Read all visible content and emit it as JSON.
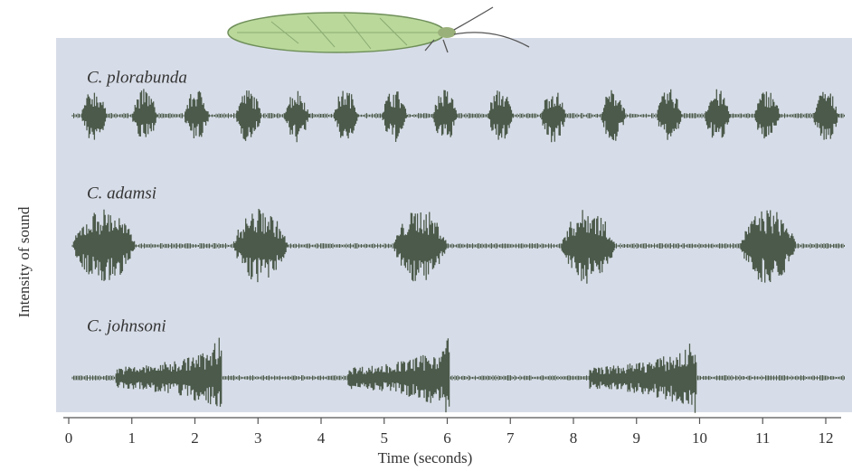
{
  "chart_data": {
    "type": "oscillogram",
    "x_label": "Time (seconds)",
    "y_label": "Intensity of sound",
    "xlim": [
      0,
      12.3
    ],
    "xticks": [
      0,
      1,
      2,
      3,
      4,
      5,
      6,
      7,
      8,
      9,
      10,
      11,
      12
    ],
    "series": [
      {
        "name": "C. plorabunda",
        "color": "#4b5a4a",
        "bursts": [
          [
            0.2,
            0.6
          ],
          [
            1.0,
            1.4
          ],
          [
            1.83,
            2.23
          ],
          [
            2.65,
            3.05
          ],
          [
            3.41,
            3.81
          ],
          [
            4.19,
            4.59
          ],
          [
            4.96,
            5.36
          ],
          [
            5.76,
            6.16
          ],
          [
            6.64,
            7.04
          ],
          [
            7.48,
            7.88
          ],
          [
            8.43,
            8.83
          ],
          [
            9.32,
            9.72
          ],
          [
            10.08,
            10.48
          ],
          [
            10.87,
            11.27
          ],
          [
            11.8,
            12.2
          ]
        ]
      },
      {
        "name": "C. adamsi",
        "color": "#4b5a4a",
        "bursts": [
          [
            0.06,
            1.06
          ],
          [
            2.6,
            3.47
          ],
          [
            5.15,
            6.0
          ],
          [
            7.8,
            8.66
          ],
          [
            10.64,
            11.53
          ]
        ]
      },
      {
        "name": "C. johnsoni",
        "color": "#4b5a4a",
        "bursts": [
          [
            0.75,
            2.42
          ],
          [
            4.43,
            6.04
          ],
          [
            8.26,
            9.95
          ]
        ]
      }
    ]
  }
}
